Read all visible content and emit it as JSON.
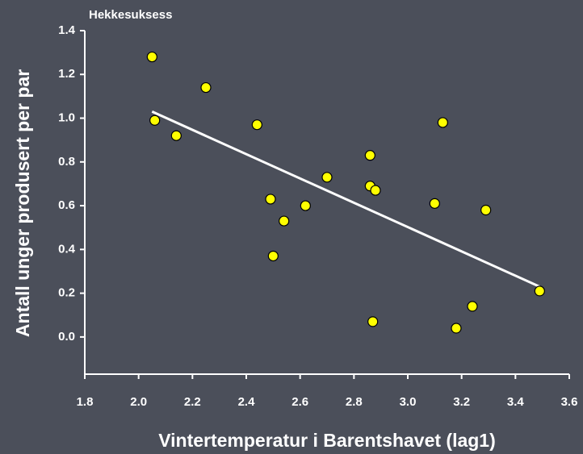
{
  "chart_data": {
    "type": "scatter",
    "title": "Hekkesuksess",
    "x_label": "Vintertemperatur i Barentshavet (lag1)",
    "y_label": "Antall unger produsert per par",
    "x": [
      2.05,
      2.06,
      2.14,
      2.25,
      2.44,
      2.49,
      2.5,
      2.54,
      2.62,
      2.7,
      2.86,
      2.86,
      2.88,
      2.87,
      3.1,
      3.13,
      3.18,
      3.24,
      3.29,
      3.49
    ],
    "values": [
      1.28,
      0.99,
      0.92,
      1.14,
      0.97,
      0.63,
      0.37,
      0.53,
      0.6,
      0.73,
      0.83,
      0.69,
      0.67,
      0.07,
      0.61,
      0.98,
      0.04,
      0.14,
      0.58,
      0.21
    ],
    "color": "#ffff00",
    "trendline": {
      "x": [
        2.05,
        3.49
      ],
      "y": [
        1.03,
        0.23
      ],
      "color": "#ffffff"
    },
    "xlim": [
      1.8,
      3.6
    ],
    "ylim": [
      -0.17,
      1.4
    ],
    "xticks": [
      1.8,
      {
        "value": 2,
        "label": "2.0"
      },
      2.2,
      2.4,
      2.6,
      2.8,
      {
        "value": 3,
        "label": "3.0"
      },
      3.2,
      3.4,
      3.6
    ],
    "yticks": [
      {
        "value": 0,
        "label": "0.0"
      },
      0.2,
      0.4,
      0.6,
      0.8,
      {
        "value": 1,
        "label": "1.0"
      },
      1.2,
      1.4
    ],
    "grid": false
  }
}
